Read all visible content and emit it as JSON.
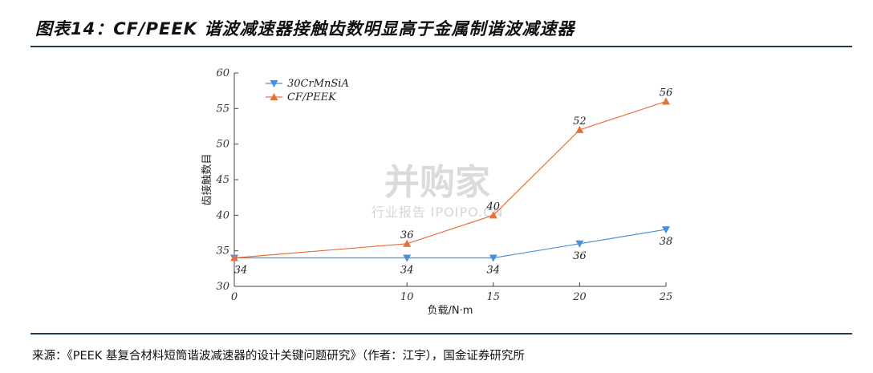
{
  "header": {
    "title": "图表14：CF/PEEK 谐波减速器接触齿数明显高于金属制谐波减速器"
  },
  "footer": {
    "source": "来源：《PEEK 基复合材料短筒谐波减速器的设计关键问题研究》（作者：江宇），国金证券研究所"
  },
  "watermark": {
    "main": "并购家",
    "sub": "行业报告 IPOIPO.CN"
  },
  "colors": {
    "series_blue": "#4a90d9",
    "series_orange": "#e8703a",
    "rule": "#1f3a56"
  },
  "chart_data": {
    "type": "line",
    "xlabel": "负载/N·m",
    "ylabel": "齿接触数目",
    "xlim": [
      0,
      25
    ],
    "ylim": [
      30,
      60
    ],
    "xticks": [
      0,
      10,
      15,
      20,
      25
    ],
    "yticks": [
      30,
      35,
      40,
      45,
      50,
      55,
      60
    ],
    "legend_position": "top-left",
    "grid": false,
    "series": [
      {
        "name": "30CrMnSiA",
        "color": "#4a90d9",
        "marker": "triangle-down",
        "x": [
          0,
          10,
          15,
          20,
          25
        ],
        "y": [
          34,
          34,
          34,
          36,
          38
        ],
        "labels": [
          "34",
          "34",
          "34",
          "36",
          "38"
        ]
      },
      {
        "name": "CF/PEEK",
        "color": "#e8703a",
        "marker": "triangle-up",
        "x": [
          0,
          10,
          15,
          20,
          25
        ],
        "y": [
          34,
          36,
          40,
          52,
          56
        ],
        "labels": [
          "",
          "36",
          "40",
          "52",
          "56"
        ]
      }
    ]
  }
}
